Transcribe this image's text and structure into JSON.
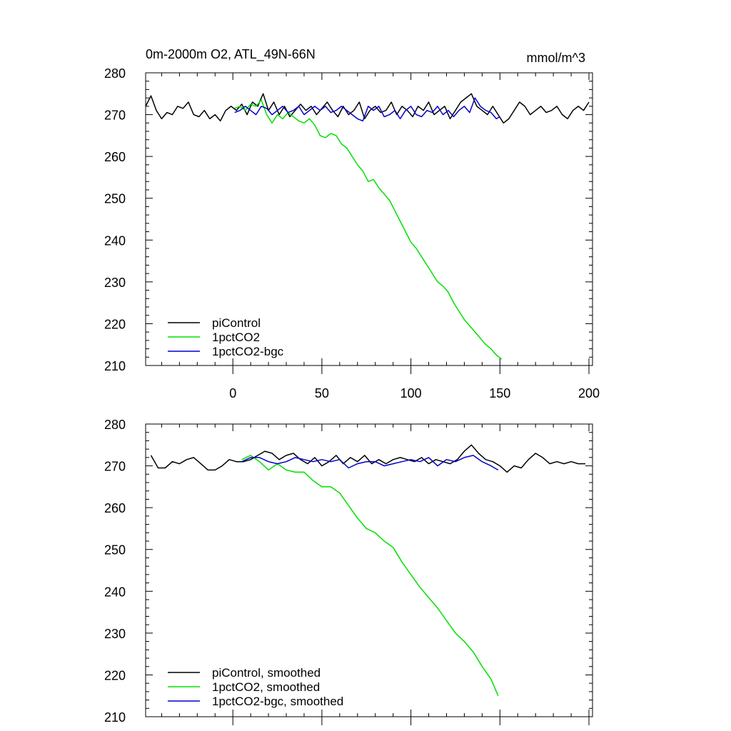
{
  "figure": {
    "title": "0m-2000m O2, ATL_49N-66N",
    "units": "mmol/m^3"
  },
  "colors": {
    "piControl": "#000000",
    "1pctCO2": "#00e000",
    "1pctCO2-bgc": "#0000cc"
  },
  "chart_data": [
    {
      "type": "line",
      "title": "0m-2000m O2, ATL_49N-66N",
      "units_label": "mmol/m^3",
      "xlabel": "",
      "ylabel": "",
      "xlim": [
        -49,
        202
      ],
      "ylim": [
        210,
        280
      ],
      "xticks": [
        0,
        50,
        100,
        150,
        200
      ],
      "yticks": [
        210,
        220,
        230,
        240,
        250,
        260,
        270,
        280
      ],
      "legend_position": "bottom-left",
      "series": [
        {
          "name": "piControl",
          "color": "#000000",
          "x": [
            -49,
            -46,
            -43,
            -40,
            -37,
            -34,
            -31,
            -28,
            -25,
            -22,
            -19,
            -16,
            -13,
            -10,
            -7,
            -4,
            -1,
            2,
            5,
            8,
            11,
            14,
            17,
            20,
            23,
            26,
            29,
            32,
            35,
            38,
            41,
            44,
            47,
            50,
            53,
            56,
            59,
            62,
            65,
            68,
            71,
            74,
            77,
            80,
            83,
            86,
            89,
            92,
            95,
            98,
            101,
            104,
            107,
            110,
            113,
            116,
            119,
            122,
            125,
            128,
            131,
            134,
            137,
            140,
            143,
            146,
            149,
            152,
            155,
            158,
            161,
            164,
            167,
            170,
            173,
            176,
            179,
            182,
            185,
            188,
            191,
            194,
            197,
            200
          ],
          "y": [
            272,
            274.5,
            271,
            269,
            270.5,
            270,
            272,
            271.5,
            273,
            270,
            269.5,
            271,
            269,
            270,
            268.5,
            271,
            272,
            271,
            272.5,
            270,
            273,
            272,
            275,
            271,
            273,
            270,
            272,
            269.5,
            271,
            272.5,
            271,
            272,
            270,
            271.5,
            273,
            271,
            269.5,
            272,
            270,
            271,
            273,
            269,
            271,
            272,
            270.5,
            271,
            273,
            270,
            272,
            271,
            269.5,
            272,
            271,
            273,
            270,
            271,
            272,
            269,
            271,
            273,
            274,
            275,
            272,
            271,
            270,
            272,
            270,
            268,
            269,
            271,
            273,
            272,
            270,
            271,
            272,
            270.5,
            271,
            272,
            270,
            269,
            271,
            272,
            271,
            273
          ]
        },
        {
          "name": "1pctCO2",
          "color": "#00e000",
          "x": [
            1,
            4,
            7,
            10,
            13,
            16,
            19,
            22,
            25,
            28,
            31,
            34,
            37,
            40,
            43,
            46,
            49,
            52,
            55,
            58,
            61,
            64,
            67,
            70,
            73,
            76,
            79,
            82,
            85,
            88,
            91,
            94,
            97,
            100,
            103,
            106,
            109,
            112,
            115,
            118,
            121,
            124,
            127,
            130,
            133,
            136,
            139,
            142,
            145,
            148,
            151
          ],
          "y": [
            271.5,
            272,
            271,
            272.5,
            272,
            273.5,
            270,
            268,
            270,
            269,
            270.5,
            269.5,
            268.5,
            268,
            269,
            267.5,
            265,
            264.5,
            265.5,
            265,
            263,
            262,
            260,
            258,
            256.5,
            254,
            254.5,
            252.5,
            251,
            249.5,
            247,
            244.5,
            242,
            239.5,
            238,
            236,
            234,
            232,
            230,
            229,
            227.5,
            225,
            223,
            221,
            219.5,
            218,
            216.5,
            215,
            214,
            212.5,
            211.5
          ]
        },
        {
          "name": "1pctCO2-bgc",
          "color": "#0000cc",
          "x": [
            1,
            4,
            7,
            10,
            13,
            16,
            19,
            22,
            25,
            28,
            31,
            34,
            37,
            40,
            43,
            46,
            49,
            52,
            55,
            58,
            61,
            64,
            67,
            70,
            73,
            76,
            79,
            82,
            85,
            88,
            91,
            94,
            97,
            100,
            103,
            106,
            109,
            112,
            115,
            118,
            121,
            124,
            127,
            130,
            133,
            136,
            139,
            142,
            145,
            148,
            150
          ],
          "y": [
            270.5,
            271,
            272,
            271,
            270,
            272,
            271.5,
            270,
            271,
            272,
            270.5,
            271,
            272,
            270,
            271,
            272,
            271,
            272,
            270.5,
            271,
            272,
            271,
            270,
            269,
            268.5,
            272,
            271,
            272,
            269.5,
            270,
            271,
            269,
            271,
            272,
            270,
            269.5,
            271,
            270.5,
            272,
            270,
            271,
            269.5,
            271,
            272,
            270.5,
            274,
            272,
            271,
            270.5,
            269,
            269.5
          ]
        }
      ],
      "legend": [
        "piControl",
        "1pctCO2",
        "1pctCO2-bgc"
      ]
    },
    {
      "type": "line",
      "title": "",
      "xlabel": "",
      "ylabel": "",
      "xlim": [
        -49,
        202
      ],
      "ylim": [
        210,
        280
      ],
      "xticks": [
        0,
        50,
        100,
        150,
        200
      ],
      "yticks": [
        210,
        220,
        230,
        240,
        250,
        260,
        270,
        280
      ],
      "legend_position": "bottom-left",
      "series": [
        {
          "name": "piControl, smoothed",
          "color": "#000000",
          "x": [
            -46,
            -42,
            -38,
            -34,
            -30,
            -26,
            -22,
            -18,
            -14,
            -10,
            -6,
            -2,
            2,
            6,
            10,
            14,
            18,
            22,
            26,
            30,
            34,
            38,
            42,
            46,
            50,
            54,
            58,
            62,
            66,
            70,
            74,
            78,
            82,
            86,
            90,
            94,
            98,
            102,
            106,
            110,
            114,
            118,
            122,
            126,
            130,
            134,
            138,
            142,
            146,
            150,
            154,
            158,
            162,
            166,
            170,
            174,
            178,
            182,
            186,
            190,
            194,
            198
          ],
          "y": [
            272.5,
            269.5,
            269.5,
            271,
            270.5,
            271.5,
            272,
            270.5,
            269,
            269,
            270,
            271.5,
            271,
            271,
            271.5,
            272.5,
            273.5,
            273,
            271.5,
            272.5,
            273,
            271.5,
            270.5,
            272,
            270,
            271,
            272.5,
            270.5,
            272,
            271,
            272.5,
            270.5,
            271.5,
            270.5,
            271.5,
            272,
            271.5,
            271,
            272,
            270.5,
            271.5,
            271,
            270.5,
            271.5,
            273.5,
            275,
            273,
            271.5,
            271,
            270,
            268.5,
            270,
            269.5,
            271.5,
            273,
            272,
            270.5,
            271,
            270.5,
            271,
            270.5,
            270.5
          ]
        },
        {
          "name": "1pctCO2, smoothed",
          "color": "#00e000",
          "x": [
            5,
            10,
            15,
            20,
            25,
            30,
            35,
            40,
            45,
            50,
            55,
            60,
            65,
            70,
            75,
            80,
            85,
            90,
            95,
            100,
            105,
            110,
            115,
            120,
            125,
            130,
            135,
            140,
            145,
            149
          ],
          "y": [
            271.5,
            272.5,
            271,
            269,
            270.5,
            269,
            268.5,
            268.5,
            266.5,
            265,
            265,
            263.5,
            260.5,
            257.5,
            255,
            254,
            252,
            250.5,
            247,
            244,
            241,
            238.5,
            236,
            233,
            230,
            228,
            225.5,
            222,
            219,
            215
          ]
        },
        {
          "name": "1pctCO2-bgc, smoothed",
          "color": "#0000cc",
          "x": [
            5,
            10,
            15,
            20,
            25,
            30,
            35,
            40,
            45,
            50,
            55,
            60,
            65,
            70,
            75,
            80,
            85,
            90,
            95,
            100,
            105,
            110,
            115,
            120,
            125,
            130,
            135,
            140,
            145,
            149
          ],
          "y": [
            271,
            272,
            272,
            271,
            270.5,
            271,
            272,
            271.5,
            271,
            271.5,
            271,
            271.5,
            269.5,
            270.5,
            271,
            271,
            270,
            270.5,
            271,
            271.5,
            271,
            272,
            270,
            271.5,
            271,
            272,
            272.5,
            271,
            270,
            269
          ]
        }
      ],
      "legend": [
        "piControl, smoothed",
        "1pctCO2, smoothed",
        "1pctCO2-bgc, smoothed"
      ]
    }
  ]
}
